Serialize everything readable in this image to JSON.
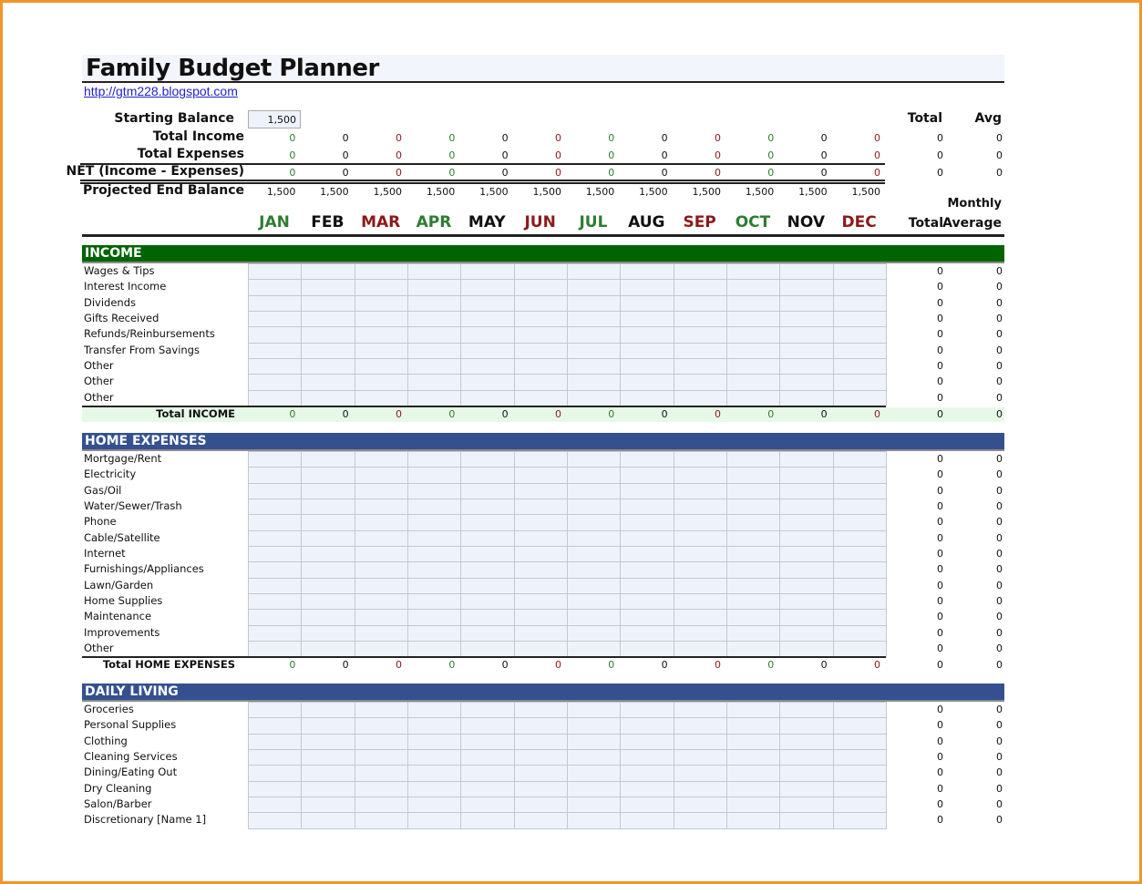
{
  "title": "Family Budget Planner",
  "link": "http://gtm228.blogspot.com",
  "colors": {
    "green": "#2e7d32",
    "black": "#111111",
    "red": "#8b1a1a",
    "income_band": "#006400",
    "expense_band": "#34508f",
    "total_income_bg": "#e6f9e6",
    "cell_bg": "#eef3fb"
  },
  "months": [
    "JAN",
    "FEB",
    "MAR",
    "APR",
    "MAY",
    "JUN",
    "JUL",
    "AUG",
    "SEP",
    "OCT",
    "NOV",
    "DEC"
  ],
  "summary": {
    "starting_balance_label": "Starting Balance",
    "starting_balance": "1,500",
    "total_header": "Total",
    "avg_header": "Avg",
    "rows": [
      {
        "label": "Total Income",
        "values": [
          "0",
          "0",
          "0",
          "0",
          "0",
          "0",
          "0",
          "0",
          "0",
          "0",
          "0",
          "0"
        ],
        "total": "0",
        "avg": "0"
      },
      {
        "label": "Total Expenses",
        "values": [
          "0",
          "0",
          "0",
          "0",
          "0",
          "0",
          "0",
          "0",
          "0",
          "0",
          "0",
          "0"
        ],
        "total": "0",
        "avg": "0"
      },
      {
        "label": "NET (Income - Expenses)",
        "values": [
          "0",
          "0",
          "0",
          "0",
          "0",
          "0",
          "0",
          "0",
          "0",
          "0",
          "0",
          "0"
        ],
        "total": "0",
        "avg": "0"
      },
      {
        "label": "Projected End Balance",
        "values": [
          "1,500",
          "1,500",
          "1,500",
          "1,500",
          "1,500",
          "1,500",
          "1,500",
          "1,500",
          "1,500",
          "1,500",
          "1,500",
          "1,500"
        ]
      }
    ]
  },
  "col_headers": {
    "monthly": "Monthly",
    "total": "Total",
    "average": "Average"
  },
  "sections": [
    {
      "name": "INCOME",
      "band": "income",
      "items": [
        "Wages & Tips",
        "Interest Income",
        "Dividends",
        "Gifts Received",
        "Refunds/Reinbursements",
        "Transfer From Savings",
        "Other",
        "Other",
        "Other"
      ],
      "item_total": "0",
      "item_avg": "0",
      "total_label": "Total INCOME",
      "totals": [
        "0",
        "0",
        "0",
        "0",
        "0",
        "0",
        "0",
        "0",
        "0",
        "0",
        "0",
        "0"
      ],
      "total_total": "0",
      "total_avg": "0"
    },
    {
      "name": "HOME EXPENSES",
      "band": "expense",
      "items": [
        "Mortgage/Rent",
        "Electricity",
        "Gas/Oil",
        "Water/Sewer/Trash",
        "Phone",
        "Cable/Satellite",
        "Internet",
        "Furnishings/Appliances",
        "Lawn/Garden",
        "Home Supplies",
        "Maintenance",
        "Improvements",
        "Other"
      ],
      "item_total": "0",
      "item_avg": "0",
      "total_label": "Total HOME EXPENSES",
      "totals": [
        "0",
        "0",
        "0",
        "0",
        "0",
        "0",
        "0",
        "0",
        "0",
        "0",
        "0",
        "0"
      ],
      "total_total": "0",
      "total_avg": "0"
    },
    {
      "name": "DAILY LIVING",
      "band": "expense",
      "items": [
        "Groceries",
        "Personal Supplies",
        "Clothing",
        "Cleaning Services",
        "Dining/Eating Out",
        "Dry Cleaning",
        "Salon/Barber",
        "Discretionary [Name 1]"
      ],
      "item_total": "0",
      "item_avg": "0"
    }
  ]
}
